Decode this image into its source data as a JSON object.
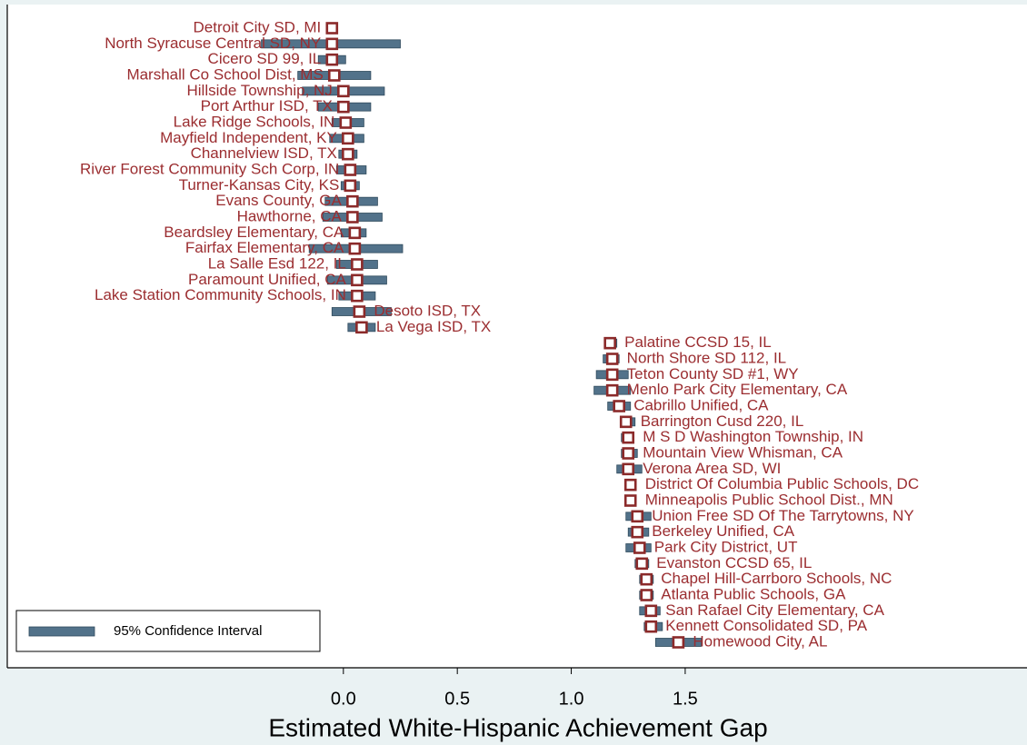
{
  "chart_data": {
    "type": "dotci",
    "xlabel": "Estimated White-Hispanic Achievement Gap",
    "categories": [
      "Detroit City SD, MI",
      "North Syracuse Central SD, NY",
      "Cicero SD 99, IL",
      "Marshall Co School Dist, MS",
      "Hillside Township, NJ",
      "Port Arthur ISD, TX",
      "Lake Ridge Schools, IN",
      "Mayfield Independent, KY",
      "Channelview ISD, TX",
      "River Forest Community Sch Corp, IN",
      "Turner-Kansas City, KS",
      "Evans County, GA",
      "Hawthorne, CA",
      "Beardsley Elementary, CA",
      "Fairfax Elementary, CA",
      "La Salle Esd 122, IL",
      "Paramount Unified, CA",
      "Lake Station Community Schools, IN",
      "Desoto ISD, TX",
      "La Vega ISD, TX",
      "Palatine CCSD 15, IL",
      "North Shore SD 112, IL",
      "Teton County SD #1, WY",
      "Menlo Park City Elementary, CA",
      "Cabrillo Unified, CA",
      "Barrington Cusd 220, IL",
      "M S D Washington Township, IN",
      "Mountain View Whisman, CA",
      "Verona Area SD, WI",
      "District Of Columbia Public Schools, DC",
      "Minneapolis Public School Dist., MN",
      "Union Free SD Of The Tarrytowns, NY",
      "Berkeley Unified, CA",
      "Park City District, UT",
      "Evanston CCSD 65, IL",
      "Chapel Hill-Carrboro Schools, NC",
      "Atlanta Public Schools, GA",
      "San Rafael City Elementary, CA",
      "Kennett Consolidated SD, PA",
      "Homewood City, AL"
    ],
    "values": [
      -0.05,
      -0.05,
      -0.05,
      -0.04,
      0.0,
      0.0,
      0.01,
      0.02,
      0.02,
      0.03,
      0.03,
      0.04,
      0.04,
      0.05,
      0.05,
      0.06,
      0.06,
      0.06,
      0.07,
      0.08,
      1.17,
      1.18,
      1.18,
      1.18,
      1.21,
      1.24,
      1.25,
      1.25,
      1.25,
      1.26,
      1.26,
      1.29,
      1.29,
      1.3,
      1.31,
      1.33,
      1.33,
      1.35,
      1.35,
      1.47
    ],
    "marker_color": "#8b2a2a",
    "ci": {
      "name": "95% Confidence Interval",
      "color": "#52728a",
      "low": [
        -0.06,
        -0.36,
        -0.11,
        -0.2,
        -0.18,
        -0.11,
        -0.05,
        -0.06,
        -0.02,
        -0.03,
        -0.01,
        -0.08,
        -0.09,
        -0.01,
        -0.15,
        -0.03,
        -0.07,
        -0.02,
        -0.05,
        0.02,
        1.15,
        1.14,
        1.11,
        1.1,
        1.16,
        1.22,
        1.22,
        1.22,
        1.2,
        1.24,
        1.24,
        1.24,
        1.25,
        1.24,
        1.28,
        1.3,
        1.3,
        1.3,
        1.32,
        1.37
      ],
      "high": [
        -0.04,
        0.25,
        0.01,
        0.12,
        0.18,
        0.12,
        0.09,
        0.09,
        0.06,
        0.1,
        0.07,
        0.15,
        0.17,
        0.1,
        0.26,
        0.15,
        0.19,
        0.14,
        0.21,
        0.14,
        1.2,
        1.21,
        1.25,
        1.26,
        1.26,
        1.28,
        1.27,
        1.29,
        1.31,
        1.27,
        1.28,
        1.35,
        1.34,
        1.35,
        1.34,
        1.36,
        1.36,
        1.39,
        1.4,
        1.57
      ]
    },
    "xlim": [
      -1.475,
      3.0
    ],
    "xticks": [
      {
        "value": 0,
        "label": "0.0"
      },
      0.5,
      {
        "value": 1,
        "label": "1.0"
      },
      1.5
    ],
    "label_color": "#9b2d30"
  }
}
